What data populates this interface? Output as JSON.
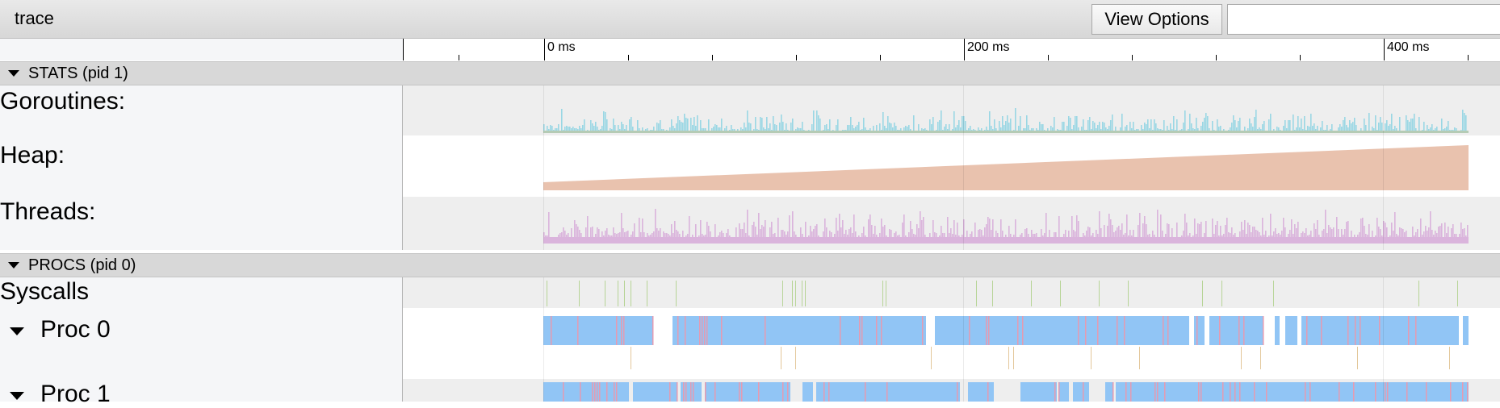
{
  "window": {
    "title": "trace"
  },
  "toolbar": {
    "view_options_label": "View Options",
    "search_value": ""
  },
  "ruler": {
    "labels": [
      "0 ms",
      "200 ms",
      "400 ms"
    ]
  },
  "groups": {
    "stats": {
      "label": "STATS (pid 1)"
    },
    "procs": {
      "label": "PROCS (pid 0)"
    }
  },
  "tracks": {
    "goroutines": {
      "label": "Goroutines:",
      "color": "#9ad7e4",
      "base_color": "#b5cbb5"
    },
    "heap": {
      "label": "Heap:",
      "color": "#e9c2ae"
    },
    "threads": {
      "label": "Threads:",
      "color": "#dab4dc"
    },
    "syscalls": {
      "label": "Syscalls",
      "color": "#b7d497"
    },
    "proc0": {
      "label": "Proc 0",
      "color": "#91c5f5",
      "accent": "#e59bb1"
    },
    "proc1": {
      "label": "Proc 1",
      "color": "#91c5f5",
      "accent": "#e59bb1"
    }
  }
}
